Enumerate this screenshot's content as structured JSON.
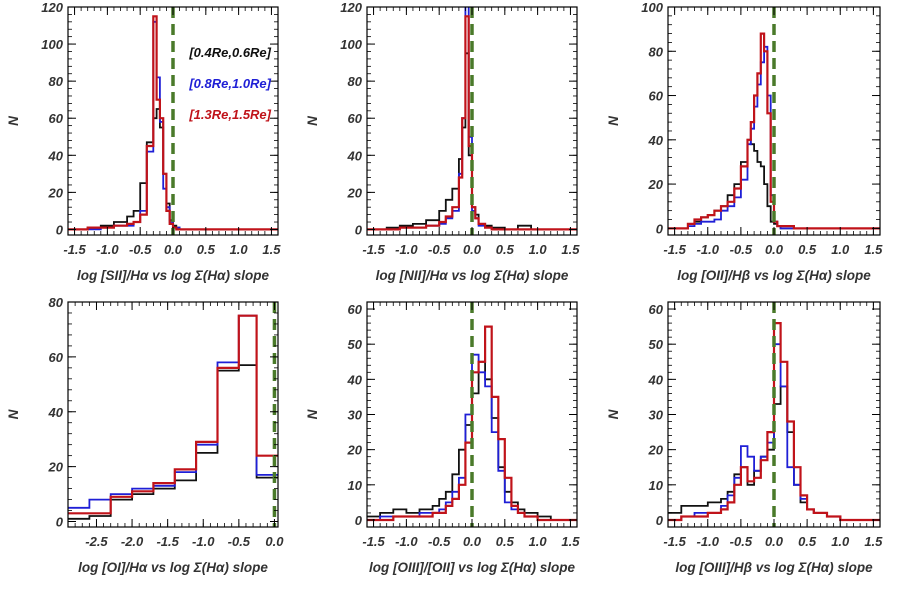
{
  "figure": {
    "colors": {
      "black": "#111111",
      "blue": "#1f1fd6",
      "red": "#c0131a",
      "vline": "#4a7a2a"
    }
  },
  "chart_data": [
    {
      "type": "histogram",
      "xlabel": "log [SII]/Hα vs log Σ(Hα) slope",
      "ylabel": "N",
      "xlim": [
        -1.6,
        1.6
      ],
      "ylim": [
        -3,
        120
      ],
      "xticks": [
        -1.5,
        -1.0,
        -0.5,
        0.0,
        0.5,
        1.0,
        1.5
      ],
      "xtick_labels": [
        "-1.5",
        "-1.0",
        "-0.5",
        "0.0",
        "0.5",
        "1.0",
        "1.5"
      ],
      "yticks": [
        0,
        20,
        40,
        60,
        80,
        100,
        120
      ],
      "ytick_labels": [
        "0",
        "20",
        "40",
        "60",
        "80",
        "100",
        "120"
      ],
      "vline_x": 0.0,
      "legend": [
        {
          "label": "[0.4Re,0.6Re]",
          "color": "black"
        },
        {
          "label": "[0.8Re,1.0Re]",
          "color": "blue"
        },
        {
          "label": "[1.3Re,1.5Re]",
          "color": "red"
        }
      ],
      "series": [
        {
          "color": "black",
          "edges": [
            -1.6,
            -1.3,
            -1.1,
            -0.9,
            -0.7,
            -0.6,
            -0.5,
            -0.4,
            -0.3,
            -0.25,
            -0.2,
            -0.15,
            -0.1,
            -0.05,
            0.0,
            0.05,
            0.1,
            0.2,
            0.4,
            0.8,
            1.2,
            1.6
          ],
          "counts": [
            0,
            1,
            2,
            4,
            7,
            10,
            25,
            47,
            60,
            65,
            55,
            30,
            14,
            5,
            2,
            1,
            0,
            0,
            0,
            0,
            0
          ]
        },
        {
          "color": "blue",
          "edges": [
            -1.6,
            -1.3,
            -1.1,
            -0.9,
            -0.7,
            -0.6,
            -0.5,
            -0.4,
            -0.3,
            -0.25,
            -0.2,
            -0.15,
            -0.1,
            -0.05,
            0.0,
            0.05,
            0.1,
            0.2,
            0.4,
            0.8,
            1.2,
            1.6
          ],
          "counts": [
            0,
            0,
            1,
            2,
            2,
            4,
            10,
            42,
            112,
            82,
            58,
            22,
            12,
            4,
            1,
            1,
            0,
            0,
            0,
            0,
            0
          ]
        },
        {
          "color": "red",
          "edges": [
            -1.6,
            -1.3,
            -1.1,
            -0.9,
            -0.7,
            -0.6,
            -0.5,
            -0.4,
            -0.3,
            -0.25,
            -0.2,
            -0.15,
            -0.1,
            -0.05,
            0.0,
            0.05,
            0.1,
            0.2,
            0.4,
            0.8,
            1.2,
            1.6
          ],
          "counts": [
            0,
            1,
            1,
            2,
            3,
            4,
            8,
            45,
            115,
            70,
            60,
            30,
            10,
            3,
            1,
            0,
            0,
            0,
            0,
            0,
            0
          ]
        }
      ]
    },
    {
      "type": "histogram",
      "xlabel": "log [NII]/Hα vs log Σ(Hα) slope",
      "ylabel": "N",
      "xlim": [
        -1.6,
        1.6
      ],
      "ylim": [
        -3,
        120
      ],
      "xticks": [
        -1.5,
        -1.0,
        -0.5,
        0.0,
        0.5,
        1.0,
        1.5
      ],
      "xtick_labels": [
        "-1.5",
        "-1.0",
        "-0.5",
        "0.0",
        "0.5",
        "1.0",
        "1.5"
      ],
      "yticks": [
        0,
        20,
        40,
        60,
        80,
        100,
        120
      ],
      "ytick_labels": [
        "0",
        "20",
        "40",
        "60",
        "80",
        "100",
        "120"
      ],
      "vline_x": 0.0,
      "series": [
        {
          "color": "black",
          "edges": [
            -1.6,
            -1.3,
            -1.1,
            -0.9,
            -0.7,
            -0.5,
            -0.4,
            -0.3,
            -0.2,
            -0.15,
            -0.1,
            -0.05,
            0.0,
            0.05,
            0.1,
            0.2,
            0.3,
            0.5,
            0.7,
            0.9,
            1.1,
            1.6
          ],
          "counts": [
            0,
            1,
            2,
            3,
            5,
            10,
            16,
            22,
            38,
            55,
            95,
            40,
            12,
            8,
            3,
            2,
            1,
            0,
            2,
            0,
            0
          ]
        },
        {
          "color": "blue",
          "edges": [
            -1.6,
            -1.3,
            -1.1,
            -0.9,
            -0.7,
            -0.5,
            -0.4,
            -0.3,
            -0.2,
            -0.15,
            -0.1,
            -0.05,
            0.0,
            0.05,
            0.1,
            0.2,
            0.3,
            0.5,
            0.7,
            0.9,
            1.1,
            1.6
          ],
          "counts": [
            0,
            0,
            1,
            1,
            2,
            3,
            6,
            10,
            30,
            60,
            125,
            50,
            10,
            6,
            2,
            1,
            0,
            0,
            0,
            0,
            0
          ]
        },
        {
          "color": "red",
          "edges": [
            -1.6,
            -1.3,
            -1.1,
            -0.9,
            -0.7,
            -0.5,
            -0.4,
            -0.3,
            -0.2,
            -0.15,
            -0.1,
            -0.05,
            0.0,
            0.05,
            0.1,
            0.2,
            0.3,
            0.5,
            0.7,
            0.9,
            1.1,
            1.6
          ],
          "counts": [
            0,
            0,
            1,
            1,
            2,
            4,
            7,
            12,
            28,
            60,
            115,
            45,
            12,
            6,
            3,
            1,
            0,
            0,
            0,
            0,
            0
          ]
        }
      ]
    },
    {
      "type": "histogram",
      "xlabel": "log [OII]/Hβ vs log Σ(Hα) slope",
      "ylabel": "N",
      "xlim": [
        -1.6,
        1.6
      ],
      "ylim": [
        -3,
        100
      ],
      "xticks": [
        -1.5,
        -1.0,
        -0.5,
        0.0,
        0.5,
        1.0,
        1.5
      ],
      "xtick_labels": [
        "-1.5",
        "-1.0",
        "-0.5",
        "0.0",
        "0.5",
        "1.0",
        "1.5"
      ],
      "yticks": [
        0,
        20,
        40,
        60,
        80,
        100
      ],
      "ytick_labels": [
        "0",
        "20",
        "40",
        "60",
        "80",
        "100"
      ],
      "vline_x": 0.0,
      "series": [
        {
          "color": "black",
          "edges": [
            -1.6,
            -1.3,
            -1.2,
            -1.1,
            -1.0,
            -0.9,
            -0.8,
            -0.7,
            -0.6,
            -0.5,
            -0.4,
            -0.35,
            -0.3,
            -0.25,
            -0.2,
            -0.15,
            -0.1,
            -0.05,
            0.0,
            0.05,
            0.1,
            0.2,
            0.3,
            0.4,
            0.5,
            0.6,
            1.6
          ],
          "counts": [
            0,
            2,
            3,
            5,
            6,
            8,
            10,
            15,
            20,
            30,
            40,
            38,
            35,
            30,
            28,
            20,
            10,
            3,
            2,
            1,
            0,
            0,
            0,
            0,
            0,
            0
          ]
        },
        {
          "color": "blue",
          "edges": [
            -1.6,
            -1.3,
            -1.2,
            -1.1,
            -1.0,
            -0.9,
            -0.8,
            -0.7,
            -0.6,
            -0.5,
            -0.4,
            -0.35,
            -0.3,
            -0.25,
            -0.2,
            -0.15,
            -0.1,
            -0.05,
            0.0,
            0.05,
            0.1,
            0.2,
            0.3,
            0.4,
            0.5,
            0.6,
            1.6
          ],
          "counts": [
            0,
            1,
            2,
            3,
            3,
            4,
            8,
            10,
            14,
            22,
            38,
            45,
            55,
            65,
            75,
            82,
            60,
            15,
            3,
            1,
            0,
            0,
            0,
            0,
            0,
            0
          ]
        },
        {
          "color": "red",
          "edges": [
            -1.6,
            -1.3,
            -1.2,
            -1.1,
            -1.0,
            -0.9,
            -0.8,
            -0.7,
            -0.6,
            -0.5,
            -0.4,
            -0.35,
            -0.3,
            -0.25,
            -0.2,
            -0.15,
            -0.1,
            -0.05,
            0.0,
            0.05,
            0.1,
            0.2,
            0.3,
            0.4,
            0.5,
            0.6,
            1.6
          ],
          "counts": [
            0,
            2,
            4,
            5,
            6,
            8,
            10,
            12,
            18,
            28,
            40,
            48,
            60,
            70,
            88,
            80,
            52,
            12,
            3,
            1,
            1,
            1,
            0,
            0,
            0,
            0
          ]
        }
      ]
    },
    {
      "type": "histogram",
      "xlabel": "log [OI]/Hα vs log Σ(Hα) slope",
      "ylabel": "N",
      "xlim": [
        -2.9,
        0.05
      ],
      "ylim": [
        -2,
        80
      ],
      "xticks": [
        -2.5,
        -2.0,
        -1.5,
        -1.0,
        -0.5,
        0.0
      ],
      "xtick_labels": [
        "-2.5",
        "-2.0",
        "-1.5",
        "-1.0",
        "-0.5",
        "0.0"
      ],
      "yticks": [
        0,
        20,
        40,
        60,
        80
      ],
      "ytick_labels": [
        "0",
        "20",
        "40",
        "60",
        "80"
      ],
      "vline_x": 0.0,
      "series": [
        {
          "color": "black",
          "edges": [
            -2.9,
            -2.6,
            -2.3,
            -2.0,
            -1.7,
            -1.4,
            -1.1,
            -0.8,
            -0.5,
            -0.25,
            0.05
          ],
          "counts": [
            1,
            2,
            8,
            10,
            12,
            15,
            25,
            55,
            57,
            16
          ]
        },
        {
          "color": "blue",
          "edges": [
            -2.9,
            -2.6,
            -2.3,
            -2.0,
            -1.7,
            -1.4,
            -1.1,
            -0.8,
            -0.5,
            -0.25,
            0.05
          ],
          "counts": [
            5,
            8,
            10,
            12,
            13,
            18,
            28,
            58,
            75,
            17
          ]
        },
        {
          "color": "red",
          "edges": [
            -2.9,
            -2.6,
            -2.3,
            -2.0,
            -1.7,
            -1.4,
            -1.1,
            -0.8,
            -0.5,
            -0.25,
            0.05
          ],
          "counts": [
            3,
            3,
            9,
            11,
            14,
            19,
            29,
            56,
            75,
            24
          ]
        }
      ]
    },
    {
      "type": "histogram",
      "xlabel": "log [OIII]/[OII] vs log Σ(Hα) slope",
      "ylabel": "N",
      "xlim": [
        -1.6,
        1.6
      ],
      "ylim": [
        -2,
        62
      ],
      "xticks": [
        -1.5,
        -1.0,
        -0.5,
        0.0,
        0.5,
        1.0,
        1.5
      ],
      "xtick_labels": [
        "-1.5",
        "-1.0",
        "-0.5",
        "0.0",
        "0.5",
        "1.0",
        "1.5"
      ],
      "yticks": [
        0,
        10,
        20,
        30,
        40,
        50,
        60
      ],
      "ytick_labels": [
        "0",
        "10",
        "20",
        "30",
        "40",
        "50",
        "60"
      ],
      "vline_x": 0.0,
      "series": [
        {
          "color": "black",
          "edges": [
            -1.6,
            -1.4,
            -1.2,
            -1.0,
            -0.8,
            -0.6,
            -0.5,
            -0.4,
            -0.3,
            -0.2,
            -0.1,
            0.0,
            0.1,
            0.2,
            0.3,
            0.4,
            0.5,
            0.6,
            0.7,
            0.8,
            1.0,
            1.2,
            1.6
          ],
          "counts": [
            1,
            2,
            3,
            2,
            3,
            4,
            6,
            8,
            13,
            20,
            27,
            36,
            45,
            40,
            29,
            15,
            8,
            5,
            3,
            2,
            1,
            0
          ]
        },
        {
          "color": "blue",
          "edges": [
            -1.6,
            -1.4,
            -1.2,
            -1.0,
            -0.8,
            -0.6,
            -0.5,
            -0.4,
            -0.3,
            -0.2,
            -0.1,
            0.0,
            0.1,
            0.2,
            0.3,
            0.4,
            0.5,
            0.6,
            0.7,
            0.8,
            1.0,
            1.2,
            1.6
          ],
          "counts": [
            0,
            1,
            1,
            1,
            2,
            2,
            3,
            5,
            8,
            12,
            30,
            47,
            42,
            38,
            25,
            14,
            5,
            3,
            2,
            1,
            0,
            0
          ]
        },
        {
          "color": "red",
          "edges": [
            -1.6,
            -1.4,
            -1.2,
            -1.0,
            -0.8,
            -0.6,
            -0.5,
            -0.4,
            -0.3,
            -0.2,
            -0.1,
            0.0,
            0.1,
            0.2,
            0.3,
            0.4,
            0.5,
            0.6,
            0.7,
            0.8,
            1.0,
            1.2,
            1.6
          ],
          "counts": [
            0,
            0,
            1,
            1,
            1,
            2,
            2,
            4,
            6,
            10,
            22,
            42,
            45,
            55,
            35,
            23,
            12,
            4,
            2,
            1,
            0,
            0
          ]
        }
      ]
    },
    {
      "type": "histogram",
      "xlabel": "log [OIII]/Hβ vs log Σ(Hα) slope",
      "ylabel": "N",
      "xlim": [
        -1.6,
        1.6
      ],
      "ylim": [
        -2,
        62
      ],
      "xticks": [
        -1.5,
        -1.0,
        -0.5,
        0.0,
        0.5,
        1.0,
        1.5
      ],
      "xtick_labels": [
        "-1.5",
        "-1.0",
        "-0.5",
        "0.0",
        "0.5",
        "1.0",
        "1.5"
      ],
      "yticks": [
        0,
        10,
        20,
        30,
        40,
        50,
        60
      ],
      "ytick_labels": [
        "0",
        "10",
        "20",
        "30",
        "40",
        "50",
        "60"
      ],
      "vline_x": 0.0,
      "series": [
        {
          "color": "black",
          "edges": [
            -1.6,
            -1.4,
            -1.2,
            -1.0,
            -0.8,
            -0.7,
            -0.6,
            -0.5,
            -0.4,
            -0.3,
            -0.2,
            -0.1,
            0.0,
            0.1,
            0.2,
            0.3,
            0.4,
            0.5,
            0.6,
            0.8,
            1.0,
            1.2,
            1.6
          ],
          "counts": [
            2,
            4,
            4,
            5,
            6,
            8,
            13,
            15,
            10,
            14,
            18,
            20,
            33,
            38,
            25,
            10,
            5,
            3,
            2,
            1,
            0,
            0
          ]
        },
        {
          "color": "blue",
          "edges": [
            -1.6,
            -1.4,
            -1.2,
            -1.0,
            -0.8,
            -0.7,
            -0.6,
            -0.5,
            -0.4,
            -0.3,
            -0.2,
            -0.1,
            0.0,
            0.1,
            0.2,
            0.3,
            0.4,
            0.5,
            0.6,
            0.8,
            1.0,
            1.2,
            1.6
          ],
          "counts": [
            0,
            1,
            2,
            2,
            4,
            7,
            12,
            21,
            18,
            14,
            18,
            22,
            50,
            38,
            15,
            10,
            6,
            3,
            2,
            1,
            0,
            0
          ]
        },
        {
          "color": "red",
          "edges": [
            -1.6,
            -1.4,
            -1.2,
            -1.0,
            -0.8,
            -0.7,
            -0.6,
            -0.5,
            -0.4,
            -0.3,
            -0.2,
            -0.1,
            0.0,
            0.1,
            0.2,
            0.3,
            0.4,
            0.5,
            0.6,
            0.8,
            1.0,
            1.2,
            1.6
          ],
          "counts": [
            0,
            1,
            1,
            2,
            3,
            5,
            10,
            15,
            11,
            12,
            17,
            25,
            56,
            45,
            28,
            15,
            7,
            3,
            2,
            1,
            0,
            0
          ]
        }
      ]
    }
  ]
}
